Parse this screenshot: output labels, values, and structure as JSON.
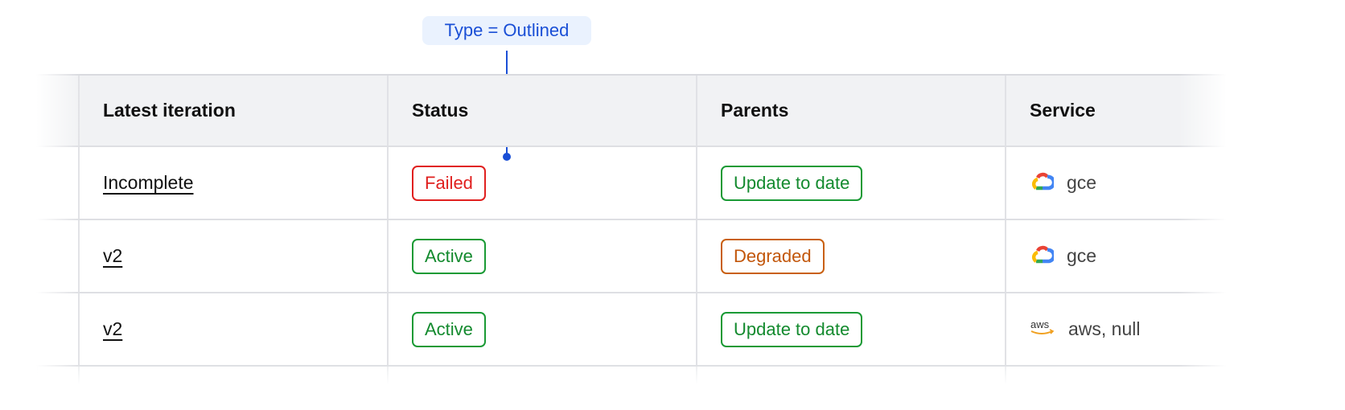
{
  "annotation": {
    "label": "Type = Outlined",
    "color": "#1a4fd6"
  },
  "table": {
    "columns": [
      "Latest iteration",
      "Status",
      "Parents",
      "Service"
    ],
    "rows": [
      {
        "iteration": "Incomplete",
        "status": "Failed",
        "status_color": "red",
        "parents": "Update to date",
        "parents_color": "green",
        "service_icon": "google-cloud-icon",
        "service": "gce"
      },
      {
        "iteration": "v2",
        "status": "Active",
        "status_color": "green",
        "parents": "Degraded",
        "parents_color": "orange",
        "service_icon": "google-cloud-icon",
        "service": "gce"
      },
      {
        "iteration": "v2",
        "status": "Active",
        "status_color": "green",
        "parents": "Update to date",
        "parents_color": "green",
        "service_icon": "aws-icon",
        "service": "aws, null"
      }
    ]
  },
  "colors": {
    "red": "#e0201f",
    "green": "#1a9a35",
    "orange": "#c9600f",
    "header_bg": "#f1f2f4"
  }
}
